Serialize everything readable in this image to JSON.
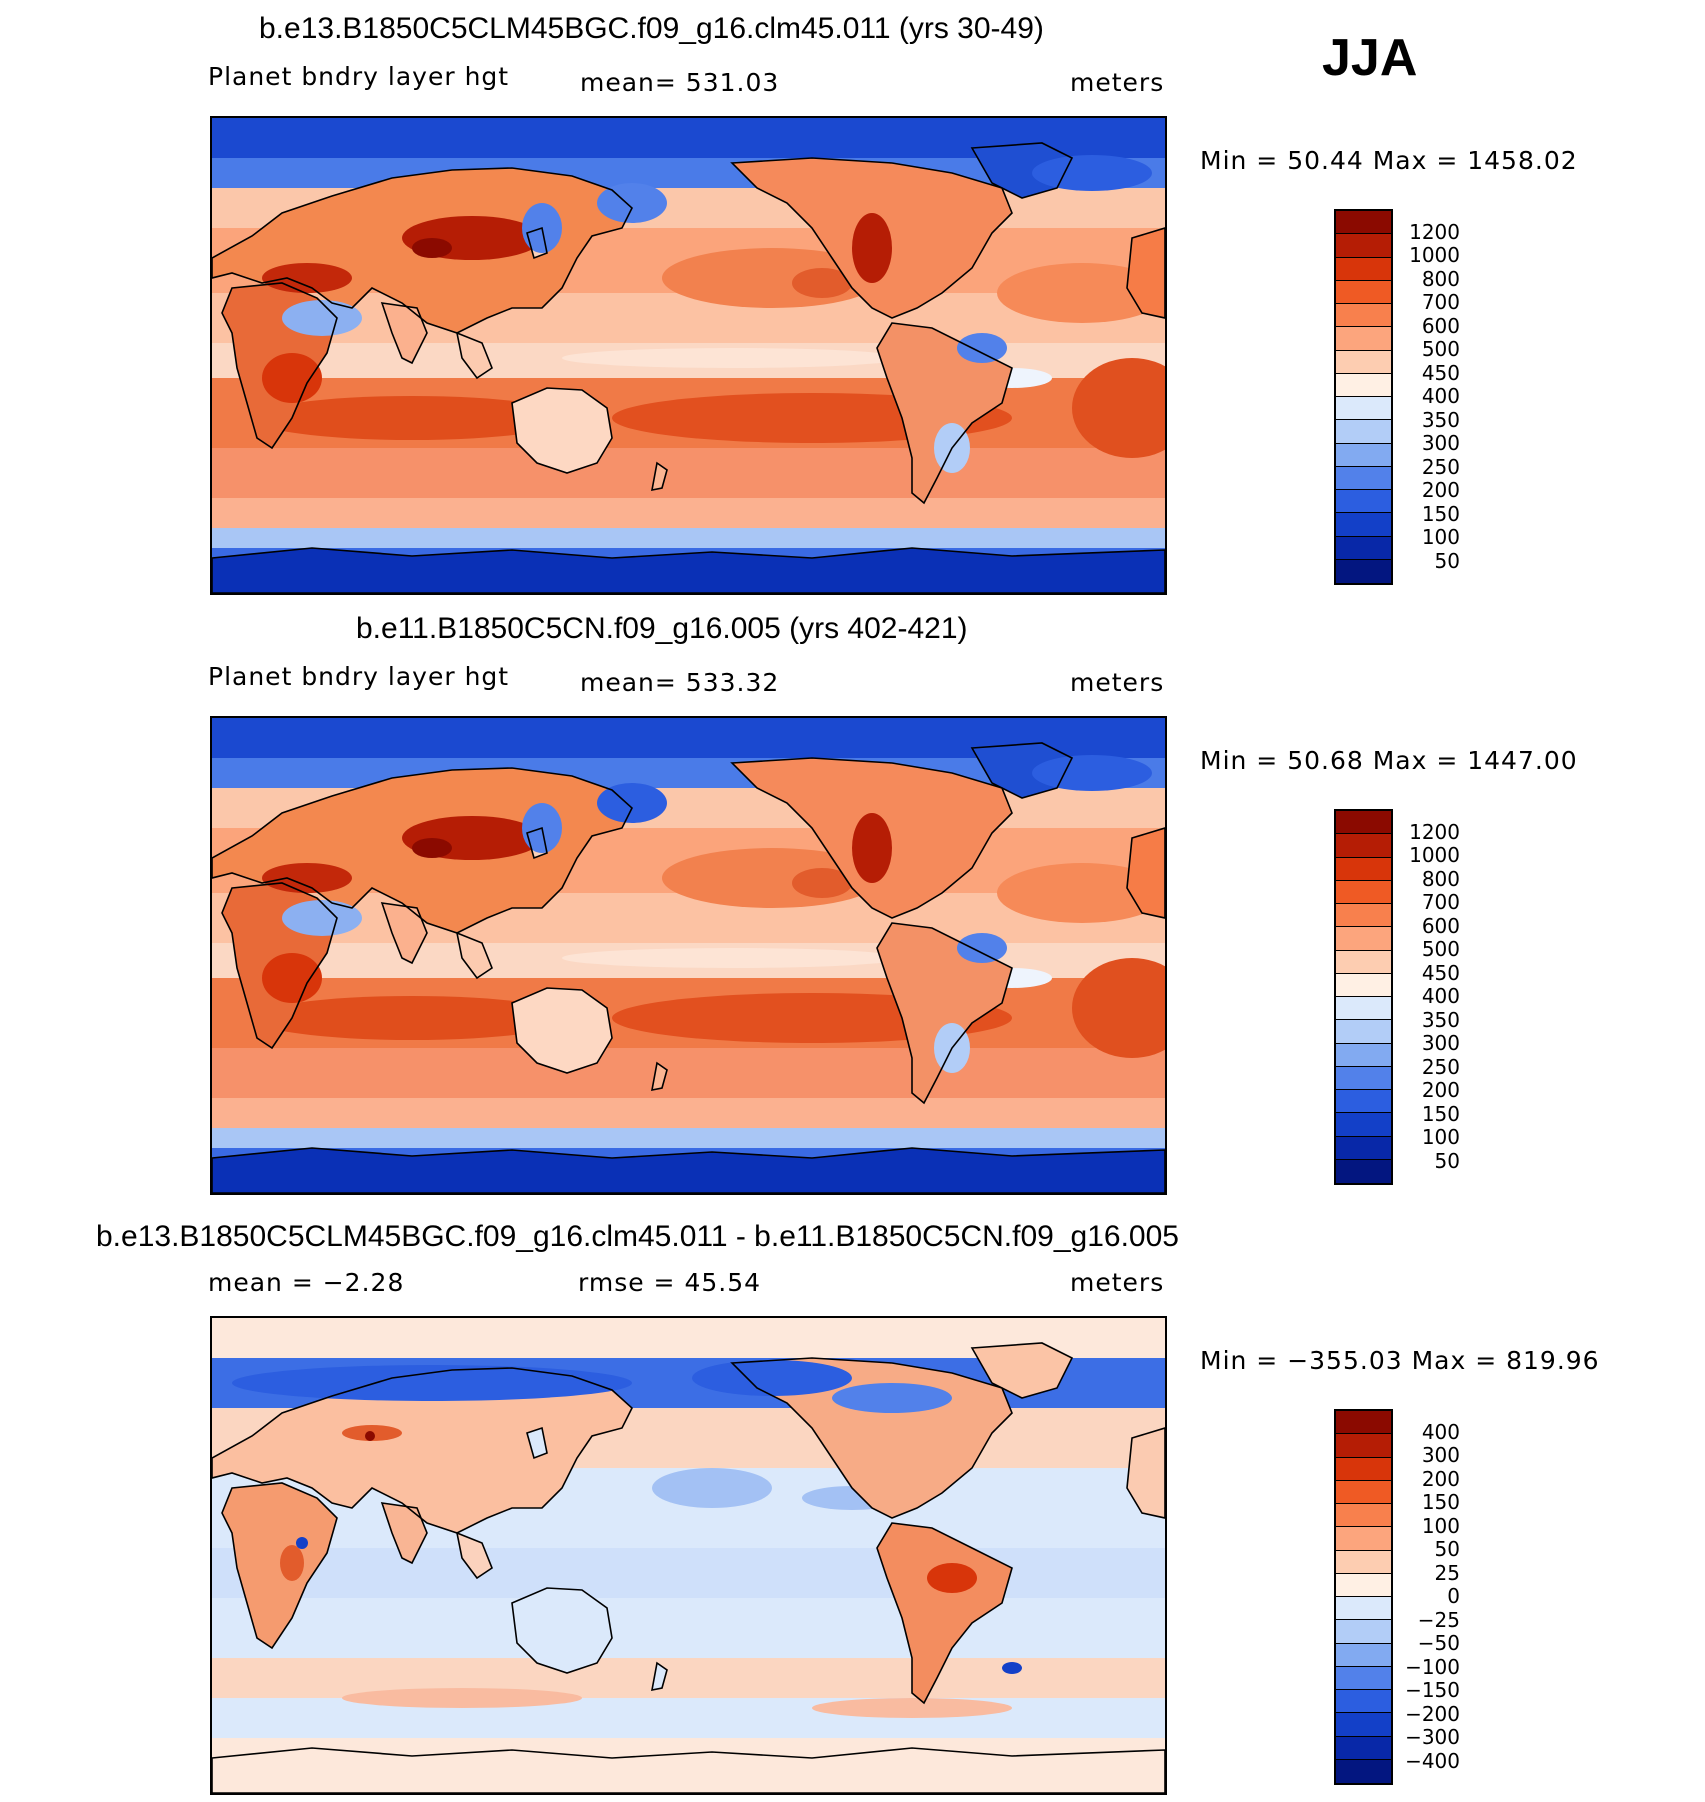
{
  "season_label": "JJA",
  "panels": [
    {
      "title": "b.e13.B1850C5CLM45BGC.f09_g16.clm45.011 (yrs 30-49)",
      "left_label": "Planet bndry layer hgt",
      "center_label": "mean= 531.03",
      "units": "meters",
      "minmax": "Min =   50.44 Max = 1458.02",
      "colorbar": {
        "labels": [
          "1200",
          "1000",
          "800",
          "700",
          "600",
          "500",
          "450",
          "400",
          "350",
          "300",
          "250",
          "200",
          "150",
          "100",
          "50"
        ],
        "colors": [
          "#8b0a00",
          "#b51d05",
          "#d8350a",
          "#ef5a24",
          "#f8804d",
          "#fca57d",
          "#fdcdb1",
          "#fff0e4",
          "#dbe9fb",
          "#b2cdf7",
          "#82aaf1",
          "#5281ea",
          "#2c5ee0",
          "#1340c8",
          "#0828a8",
          "#031680"
        ]
      },
      "map_style": "pbl"
    },
    {
      "title": "b.e11.B1850C5CN.f09_g16.005 (yrs 402-421)",
      "left_label": "Planet bndry layer hgt",
      "center_label": "mean= 533.32",
      "units": "meters",
      "minmax": "Min =   50.68 Max = 1447.00",
      "colorbar": {
        "labels": [
          "1200",
          "1000",
          "800",
          "700",
          "600",
          "500",
          "450",
          "400",
          "350",
          "300",
          "250",
          "200",
          "150",
          "100",
          "50"
        ],
        "colors": [
          "#8b0a00",
          "#b51d05",
          "#d8350a",
          "#ef5a24",
          "#f8804d",
          "#fca57d",
          "#fdcdb1",
          "#fff0e4",
          "#dbe9fb",
          "#b2cdf7",
          "#82aaf1",
          "#5281ea",
          "#2c5ee0",
          "#1340c8",
          "#0828a8",
          "#031680"
        ]
      },
      "map_style": "pbl"
    },
    {
      "title": "b.e13.B1850C5CLM45BGC.f09_g16.clm45.011 - b.e11.B1850C5CN.f09_g16.005",
      "left_label": "mean =   −2.28",
      "center_label": "rmse =   45.54",
      "units": "meters",
      "minmax": "Min = −355.03 Max = 819.96",
      "colorbar": {
        "labels": [
          "400",
          "300",
          "200",
          "150",
          "100",
          "50",
          "25",
          "0",
          "−25",
          "−50",
          "−100",
          "−150",
          "−200",
          "−300",
          "−400"
        ],
        "colors": [
          "#8b0a00",
          "#b51d05",
          "#d8350a",
          "#ef5a24",
          "#f8804d",
          "#fca57d",
          "#fdcdb1",
          "#fff0e4",
          "#dbe9fb",
          "#b2cdf7",
          "#82aaf1",
          "#5281ea",
          "#2c5ee0",
          "#1340c8",
          "#0828a8",
          "#031680"
        ]
      },
      "map_style": "diff"
    }
  ]
}
